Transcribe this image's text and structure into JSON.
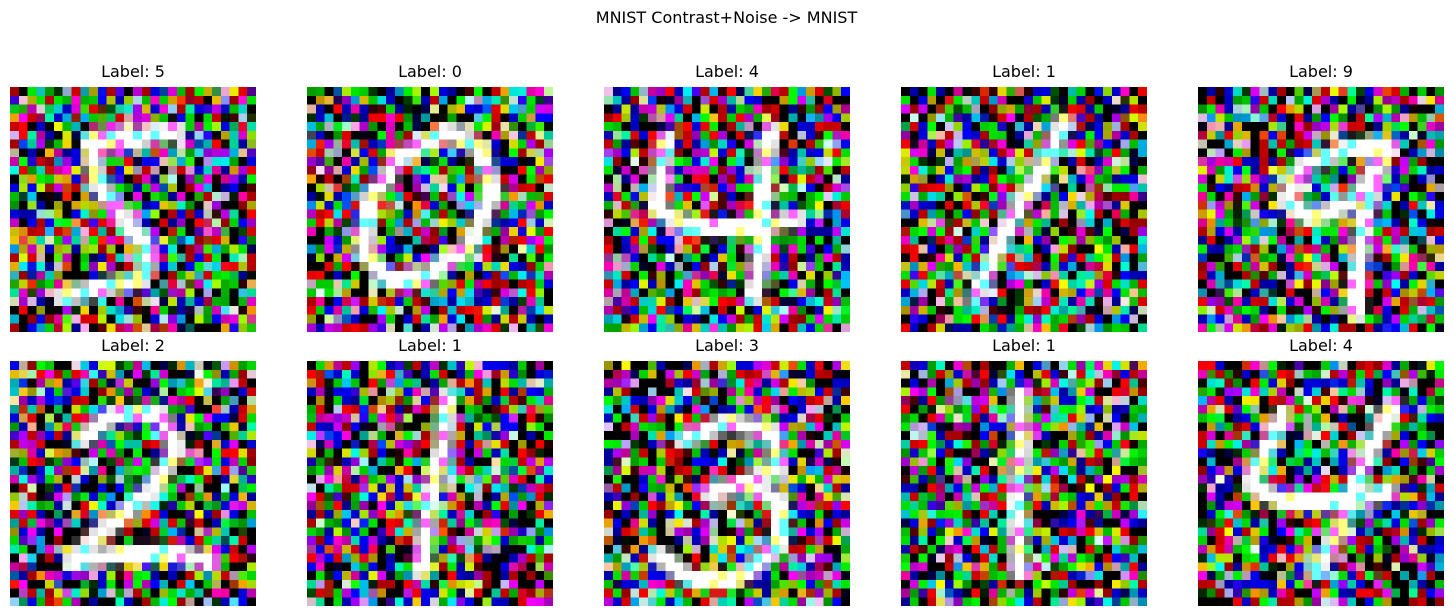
{
  "figure": {
    "title": "MNIST Contrast+Noise -> MNIST"
  },
  "panels": [
    {
      "label": "Label: 5",
      "digit": 5
    },
    {
      "label": "Label: 0",
      "digit": 0
    },
    {
      "label": "Label: 4",
      "digit": 4
    },
    {
      "label": "Label: 1",
      "digit": 1
    },
    {
      "label": "Label: 9",
      "digit": 9
    },
    {
      "label": "Label: 2",
      "digit": 2
    },
    {
      "label": "Label: 1",
      "digit": 1
    },
    {
      "label": "Label: 3",
      "digit": 3
    },
    {
      "label": "Label: 1",
      "digit": 1
    },
    {
      "label": "Label: 4",
      "digit": 4
    }
  ]
}
